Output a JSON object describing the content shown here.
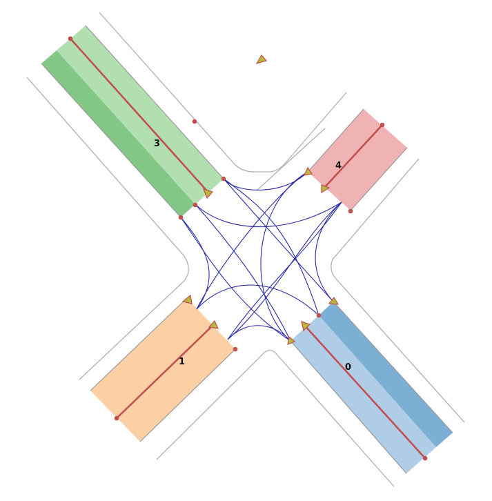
{
  "roads": [
    {
      "id": "road-0",
      "label": "0",
      "fill_outer": "#7bafd4",
      "fill_inner": "#afcde6"
    },
    {
      "id": "road-1",
      "label": "1",
      "fill_outer": "#fdcfa5",
      "fill_inner": "#fdcfa5"
    },
    {
      "id": "road-3",
      "label": "3",
      "fill_outer": "#82c785",
      "fill_inner": "#b2dfb0"
    },
    {
      "id": "road-4",
      "label": "4",
      "fill_outer": "#efb3b3",
      "fill_inner": "#efb3b3"
    }
  ],
  "colors": {
    "reference_line": "#c0504d",
    "connector": "#2b2ba8",
    "road_edge": "#b0b0b0",
    "arrow_fill": "#b8b83a"
  }
}
